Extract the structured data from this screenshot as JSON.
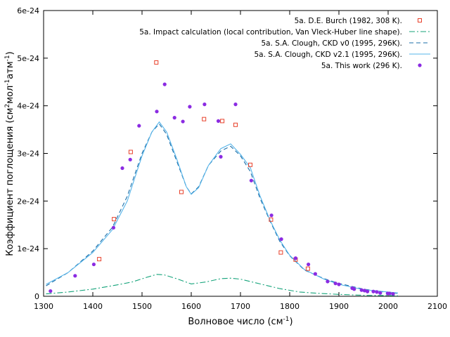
{
  "chart_data": {
    "type": "scatter",
    "xlabel": "Волновое число (см",
    "xlabel_sup": "-1",
    "xlabel_tail": ")",
    "ylabel_parts": [
      "Коэффициент поглощения (см",
      "2",
      "мол",
      "-1",
      "атм",
      "-1",
      ")"
    ],
    "xlim": [
      1300,
      2100
    ],
    "ylim": [
      0,
      6e-24
    ],
    "x_ticks": [
      1300,
      1400,
      1500,
      1600,
      1700,
      1800,
      1900,
      2000,
      2100
    ],
    "x_tick_labels": [
      "1300",
      "1400",
      "1500",
      "1600",
      "1700",
      "1800",
      "1900",
      "2000",
      "2100"
    ],
    "y_ticks": [
      0,
      1e-24,
      2e-24,
      3e-24,
      4e-24,
      5e-24,
      6e-24
    ],
    "y_tick_labels": [
      "0",
      "1e-24",
      "2e-24",
      "3e-24",
      "4e-24",
      "5e-24",
      "6e-24"
    ],
    "grid": false,
    "legend_position": "top-right",
    "series": [
      {
        "name": "5a. D.E. Burch (1982, 308 K).",
        "kind": "markers",
        "marker": "open-square",
        "color": "#e8412b",
        "points": [
          [
            1413,
            7.8e-25
          ],
          [
            1443,
            1.62e-24
          ],
          [
            1477,
            3.03e-24
          ],
          [
            1529,
            4.91e-24
          ],
          [
            1580,
            2.19e-24
          ],
          [
            1626,
            3.72e-24
          ],
          [
            1663,
            3.68e-24
          ],
          [
            1690,
            3.6e-24
          ],
          [
            1720,
            2.76e-24
          ],
          [
            1762,
            1.61e-24
          ],
          [
            1782,
            9.2e-25
          ],
          [
            1812,
            7.7e-25
          ],
          [
            1837,
            5.8e-25
          ]
        ]
      },
      {
        "name": "5a. Impact calculation  (local contribution, Van Vleck-Huber line shape).",
        "kind": "line",
        "dash": "dash-dot",
        "color": "#14a37a",
        "points": [
          [
            1305,
            5e-26
          ],
          [
            1350,
            9e-26
          ],
          [
            1400,
            1.5e-25
          ],
          [
            1450,
            2.4e-25
          ],
          [
            1480,
            3e-25
          ],
          [
            1510,
            4e-25
          ],
          [
            1530,
            4.6e-25
          ],
          [
            1545,
            4.5e-25
          ],
          [
            1570,
            3.7e-25
          ],
          [
            1600,
            2.6e-25
          ],
          [
            1630,
            3e-25
          ],
          [
            1660,
            3.7e-25
          ],
          [
            1680,
            3.8e-25
          ],
          [
            1700,
            3.6e-25
          ],
          [
            1740,
            2.6e-25
          ],
          [
            1780,
            1.6e-25
          ],
          [
            1820,
            9e-26
          ],
          [
            1860,
            6e-26
          ],
          [
            1900,
            4e-26
          ],
          [
            1950,
            2e-26
          ],
          [
            2000,
            1.5e-26
          ],
          [
            2020,
            1e-26
          ]
        ]
      },
      {
        "name": "5a. S.A. Clough,  CKD v0 (1995, 296K).",
        "kind": "line",
        "dash": "dashed",
        "color": "#1b6ea8",
        "points": [
          [
            1305,
            2.2e-25
          ],
          [
            1350,
            5e-25
          ],
          [
            1400,
            9.5e-25
          ],
          [
            1440,
            1.45e-24
          ],
          [
            1470,
            2.1e-24
          ],
          [
            1500,
            3e-24
          ],
          [
            1520,
            3.45e-24
          ],
          [
            1535,
            3.62e-24
          ],
          [
            1550,
            3.4e-24
          ],
          [
            1570,
            2.85e-24
          ],
          [
            1590,
            2.3e-24
          ],
          [
            1600,
            2.15e-24
          ],
          [
            1615,
            2.3e-24
          ],
          [
            1635,
            2.75e-24
          ],
          [
            1660,
            3.05e-24
          ],
          [
            1680,
            3.15e-24
          ],
          [
            1700,
            2.95e-24
          ],
          [
            1720,
            2.62e-24
          ],
          [
            1740,
            2.05e-24
          ],
          [
            1760,
            1.58e-24
          ],
          [
            1780,
            1.15e-24
          ],
          [
            1800,
            8.5e-25
          ],
          [
            1830,
            5.5e-25
          ],
          [
            1870,
            3.7e-25
          ],
          [
            1900,
            2.7e-25
          ],
          [
            1950,
            1.5e-25
          ],
          [
            2000,
            8e-26
          ],
          [
            2020,
            6e-26
          ]
        ]
      },
      {
        "name": "5a. S.A. Clough, CKD v2.1 (1995, 296K).",
        "kind": "line",
        "dash": "solid",
        "color": "#56b4e9",
        "points": [
          [
            1305,
            2.5e-25
          ],
          [
            1350,
            5e-25
          ],
          [
            1400,
            9.2e-25
          ],
          [
            1440,
            1.4e-24
          ],
          [
            1470,
            2e-24
          ],
          [
            1500,
            2.95e-24
          ],
          [
            1520,
            3.45e-24
          ],
          [
            1535,
            3.66e-24
          ],
          [
            1550,
            3.45e-24
          ],
          [
            1570,
            2.9e-24
          ],
          [
            1590,
            2.3e-24
          ],
          [
            1600,
            2.14e-24
          ],
          [
            1615,
            2.28e-24
          ],
          [
            1635,
            2.75e-24
          ],
          [
            1660,
            3.1e-24
          ],
          [
            1680,
            3.2e-24
          ],
          [
            1700,
            2.98e-24
          ],
          [
            1720,
            2.7e-24
          ],
          [
            1740,
            2.1e-24
          ],
          [
            1760,
            1.6e-24
          ],
          [
            1780,
            1.18e-24
          ],
          [
            1800,
            8.6e-25
          ],
          [
            1830,
            5.6e-25
          ],
          [
            1870,
            3.6e-25
          ],
          [
            1900,
            2.5e-25
          ],
          [
            1950,
            1.4e-25
          ],
          [
            2000,
            9e-26
          ],
          [
            2020,
            7e-26
          ]
        ]
      },
      {
        "name": "5a. This work (296 K).",
        "kind": "markers",
        "marker": "filled-circle",
        "color": "#8b2be2",
        "points": [
          [
            1314,
            1.1e-25
          ],
          [
            1364,
            4.3e-25
          ],
          [
            1402,
            6.7e-25
          ],
          [
            1442,
            1.44e-24
          ],
          [
            1460,
            2.69e-24
          ],
          [
            1476,
            2.87e-24
          ],
          [
            1494,
            3.58e-24
          ],
          [
            1530,
            3.88e-24
          ],
          [
            1546,
            4.45e-24
          ],
          [
            1566,
            3.75e-24
          ],
          [
            1583,
            3.67e-24
          ],
          [
            1597,
            3.98e-24
          ],
          [
            1627,
            4.03e-24
          ],
          [
            1655,
            3.68e-24
          ],
          [
            1660,
            2.93e-24
          ],
          [
            1690,
            4.03e-24
          ],
          [
            1722,
            2.43e-24
          ],
          [
            1763,
            1.7e-24
          ],
          [
            1783,
            1.2e-24
          ],
          [
            1812,
            8e-25
          ],
          [
            1838,
            6.7e-25
          ],
          [
            1852,
            4.7e-25
          ],
          [
            1877,
            3.1e-25
          ],
          [
            1893,
            2.7e-25
          ],
          [
            1900,
            2.5e-25
          ],
          [
            1927,
            1.7e-25
          ],
          [
            1931,
            1.5e-25
          ],
          [
            1946,
            1.3e-25
          ],
          [
            1952,
            1.2e-25
          ],
          [
            1958,
            1e-25
          ],
          [
            1970,
            1e-25
          ],
          [
            1977,
            9e-26
          ],
          [
            1984,
            7e-26
          ],
          [
            1999,
            6e-26
          ],
          [
            2003,
            6e-26
          ],
          [
            2010,
            5e-26
          ]
        ]
      }
    ]
  }
}
